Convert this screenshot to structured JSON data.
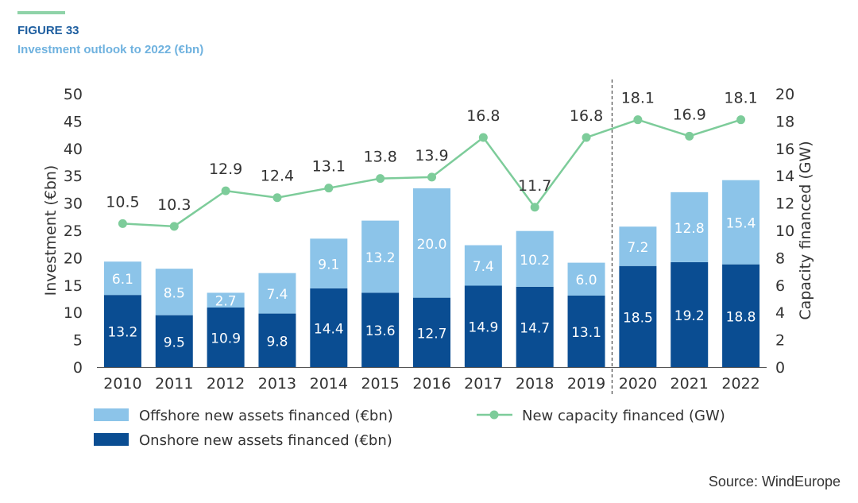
{
  "header": {
    "figure_label": "FIGURE 33",
    "figure_title": "Investment outlook to 2022 (€bn)"
  },
  "source": "Source: WindEurope",
  "colors": {
    "offshore": "#8cc4e9",
    "onshore": "#0a4d92",
    "line": "#7dcc9a",
    "rule": "#8fd3a8",
    "axis_text": "#333333"
  },
  "chart_data": {
    "type": "bar",
    "stacked": true,
    "categories": [
      "2010",
      "2011",
      "2012",
      "2013",
      "2014",
      "2015",
      "2016",
      "2017",
      "2018",
      "2019",
      "2020",
      "2021",
      "2022"
    ],
    "series": [
      {
        "name": "Onshore new assets financed (€bn)",
        "axis": "left",
        "values": [
          13.2,
          9.5,
          10.9,
          9.8,
          14.4,
          13.6,
          12.7,
          14.9,
          14.7,
          13.1,
          18.5,
          19.2,
          18.8
        ]
      },
      {
        "name": "Offshore new assets financed (€bn)",
        "axis": "left",
        "values": [
          6.1,
          8.5,
          2.7,
          7.4,
          9.1,
          13.2,
          20.0,
          7.4,
          10.2,
          6.0,
          7.2,
          12.8,
          15.4
        ]
      },
      {
        "name": "New capacity financed (GW)",
        "type": "line",
        "axis": "right",
        "values": [
          10.5,
          10.3,
          12.9,
          12.4,
          13.1,
          13.8,
          13.9,
          16.8,
          11.7,
          16.8,
          18.1,
          16.9,
          18.1
        ]
      }
    ],
    "ylabel": "Investment (€bn)",
    "y2label": "Capacity financed (GW)",
    "ylim": [
      0,
      50
    ],
    "y2lim": [
      0,
      20
    ],
    "yticks": [
      0,
      5,
      10,
      15,
      20,
      25,
      30,
      35,
      40,
      45,
      50
    ],
    "y2ticks": [
      0,
      2,
      4,
      6,
      8,
      10,
      12,
      14,
      16,
      18,
      20
    ],
    "forecast_divider_after": "2019",
    "legend": [
      {
        "label": "Offshore new assets financed (€bn)",
        "kind": "bar",
        "series": 1
      },
      {
        "label": "New capacity financed (GW)",
        "kind": "line",
        "series": 2
      },
      {
        "label": "Onshore new assets financed (€bn)",
        "kind": "bar",
        "series": 0
      }
    ]
  }
}
